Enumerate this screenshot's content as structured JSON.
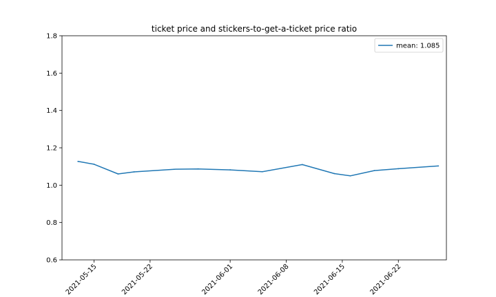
{
  "chart_data": {
    "type": "line",
    "title": "ticket price and stickers-to-get-a-ticket price ratio",
    "xlabel": "",
    "ylabel": "",
    "x_range": [
      "2021-05-11",
      "2021-06-28"
    ],
    "ylim": [
      0.6,
      1.8
    ],
    "y_ticks": [
      0.6,
      0.8,
      1.0,
      1.2,
      1.4,
      1.6,
      1.8
    ],
    "x_ticks": [
      "2021-05-15",
      "2021-05-22",
      "2021-06-01",
      "2021-06-08",
      "2021-06-15",
      "2021-06-22"
    ],
    "grid": false,
    "legend_position": "top-right",
    "series": [
      {
        "name": "mean: 1.085",
        "color": "#1f77b4",
        "points": [
          {
            "x": "2021-05-13",
            "y": 1.127
          },
          {
            "x": "2021-05-15",
            "y": 1.112
          },
          {
            "x": "2021-05-18",
            "y": 1.06
          },
          {
            "x": "2021-05-20",
            "y": 1.071
          },
          {
            "x": "2021-05-25",
            "y": 1.085
          },
          {
            "x": "2021-05-28",
            "y": 1.087
          },
          {
            "x": "2021-06-01",
            "y": 1.082
          },
          {
            "x": "2021-06-05",
            "y": 1.072
          },
          {
            "x": "2021-06-10",
            "y": 1.11
          },
          {
            "x": "2021-06-14",
            "y": 1.062
          },
          {
            "x": "2021-06-16",
            "y": 1.05
          },
          {
            "x": "2021-06-19",
            "y": 1.078
          },
          {
            "x": "2021-06-22",
            "y": 1.088
          },
          {
            "x": "2021-06-27",
            "y": 1.103
          }
        ]
      }
    ]
  }
}
